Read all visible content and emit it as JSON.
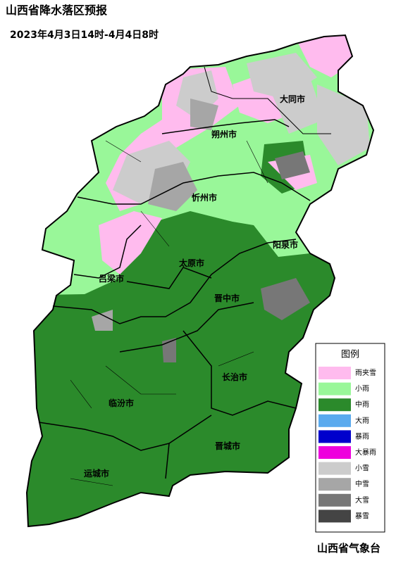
{
  "header": {
    "title": "山西省降水落区预报",
    "subtitle": "2023年4月3日14时-4月4日8时"
  },
  "cities": [
    "大同市",
    "朔州市",
    "忻州市",
    "阳泉市",
    "太原市",
    "吕梁市",
    "晋中市",
    "长治市",
    "临汾市",
    "晋城市",
    "运城市"
  ],
  "legend": {
    "title": "图例",
    "items": [
      {
        "label": "雨夹雪",
        "color": "#ffbbee"
      },
      {
        "label": "小雨",
        "color": "#99f799"
      },
      {
        "label": "中雨",
        "color": "#2b8a2b"
      },
      {
        "label": "大雨",
        "color": "#5aaaee"
      },
      {
        "label": "暴雨",
        "color": "#0000cc"
      },
      {
        "label": "大暴雨",
        "color": "#ee00dd"
      },
      {
        "label": "小雪",
        "color": "#cccccc"
      },
      {
        "label": "中雪",
        "color": "#a6a6a6"
      },
      {
        "label": "大雪",
        "color": "#777777"
      },
      {
        "label": "暴雪",
        "color": "#444444"
      }
    ]
  },
  "footer": "山西省气象台"
}
